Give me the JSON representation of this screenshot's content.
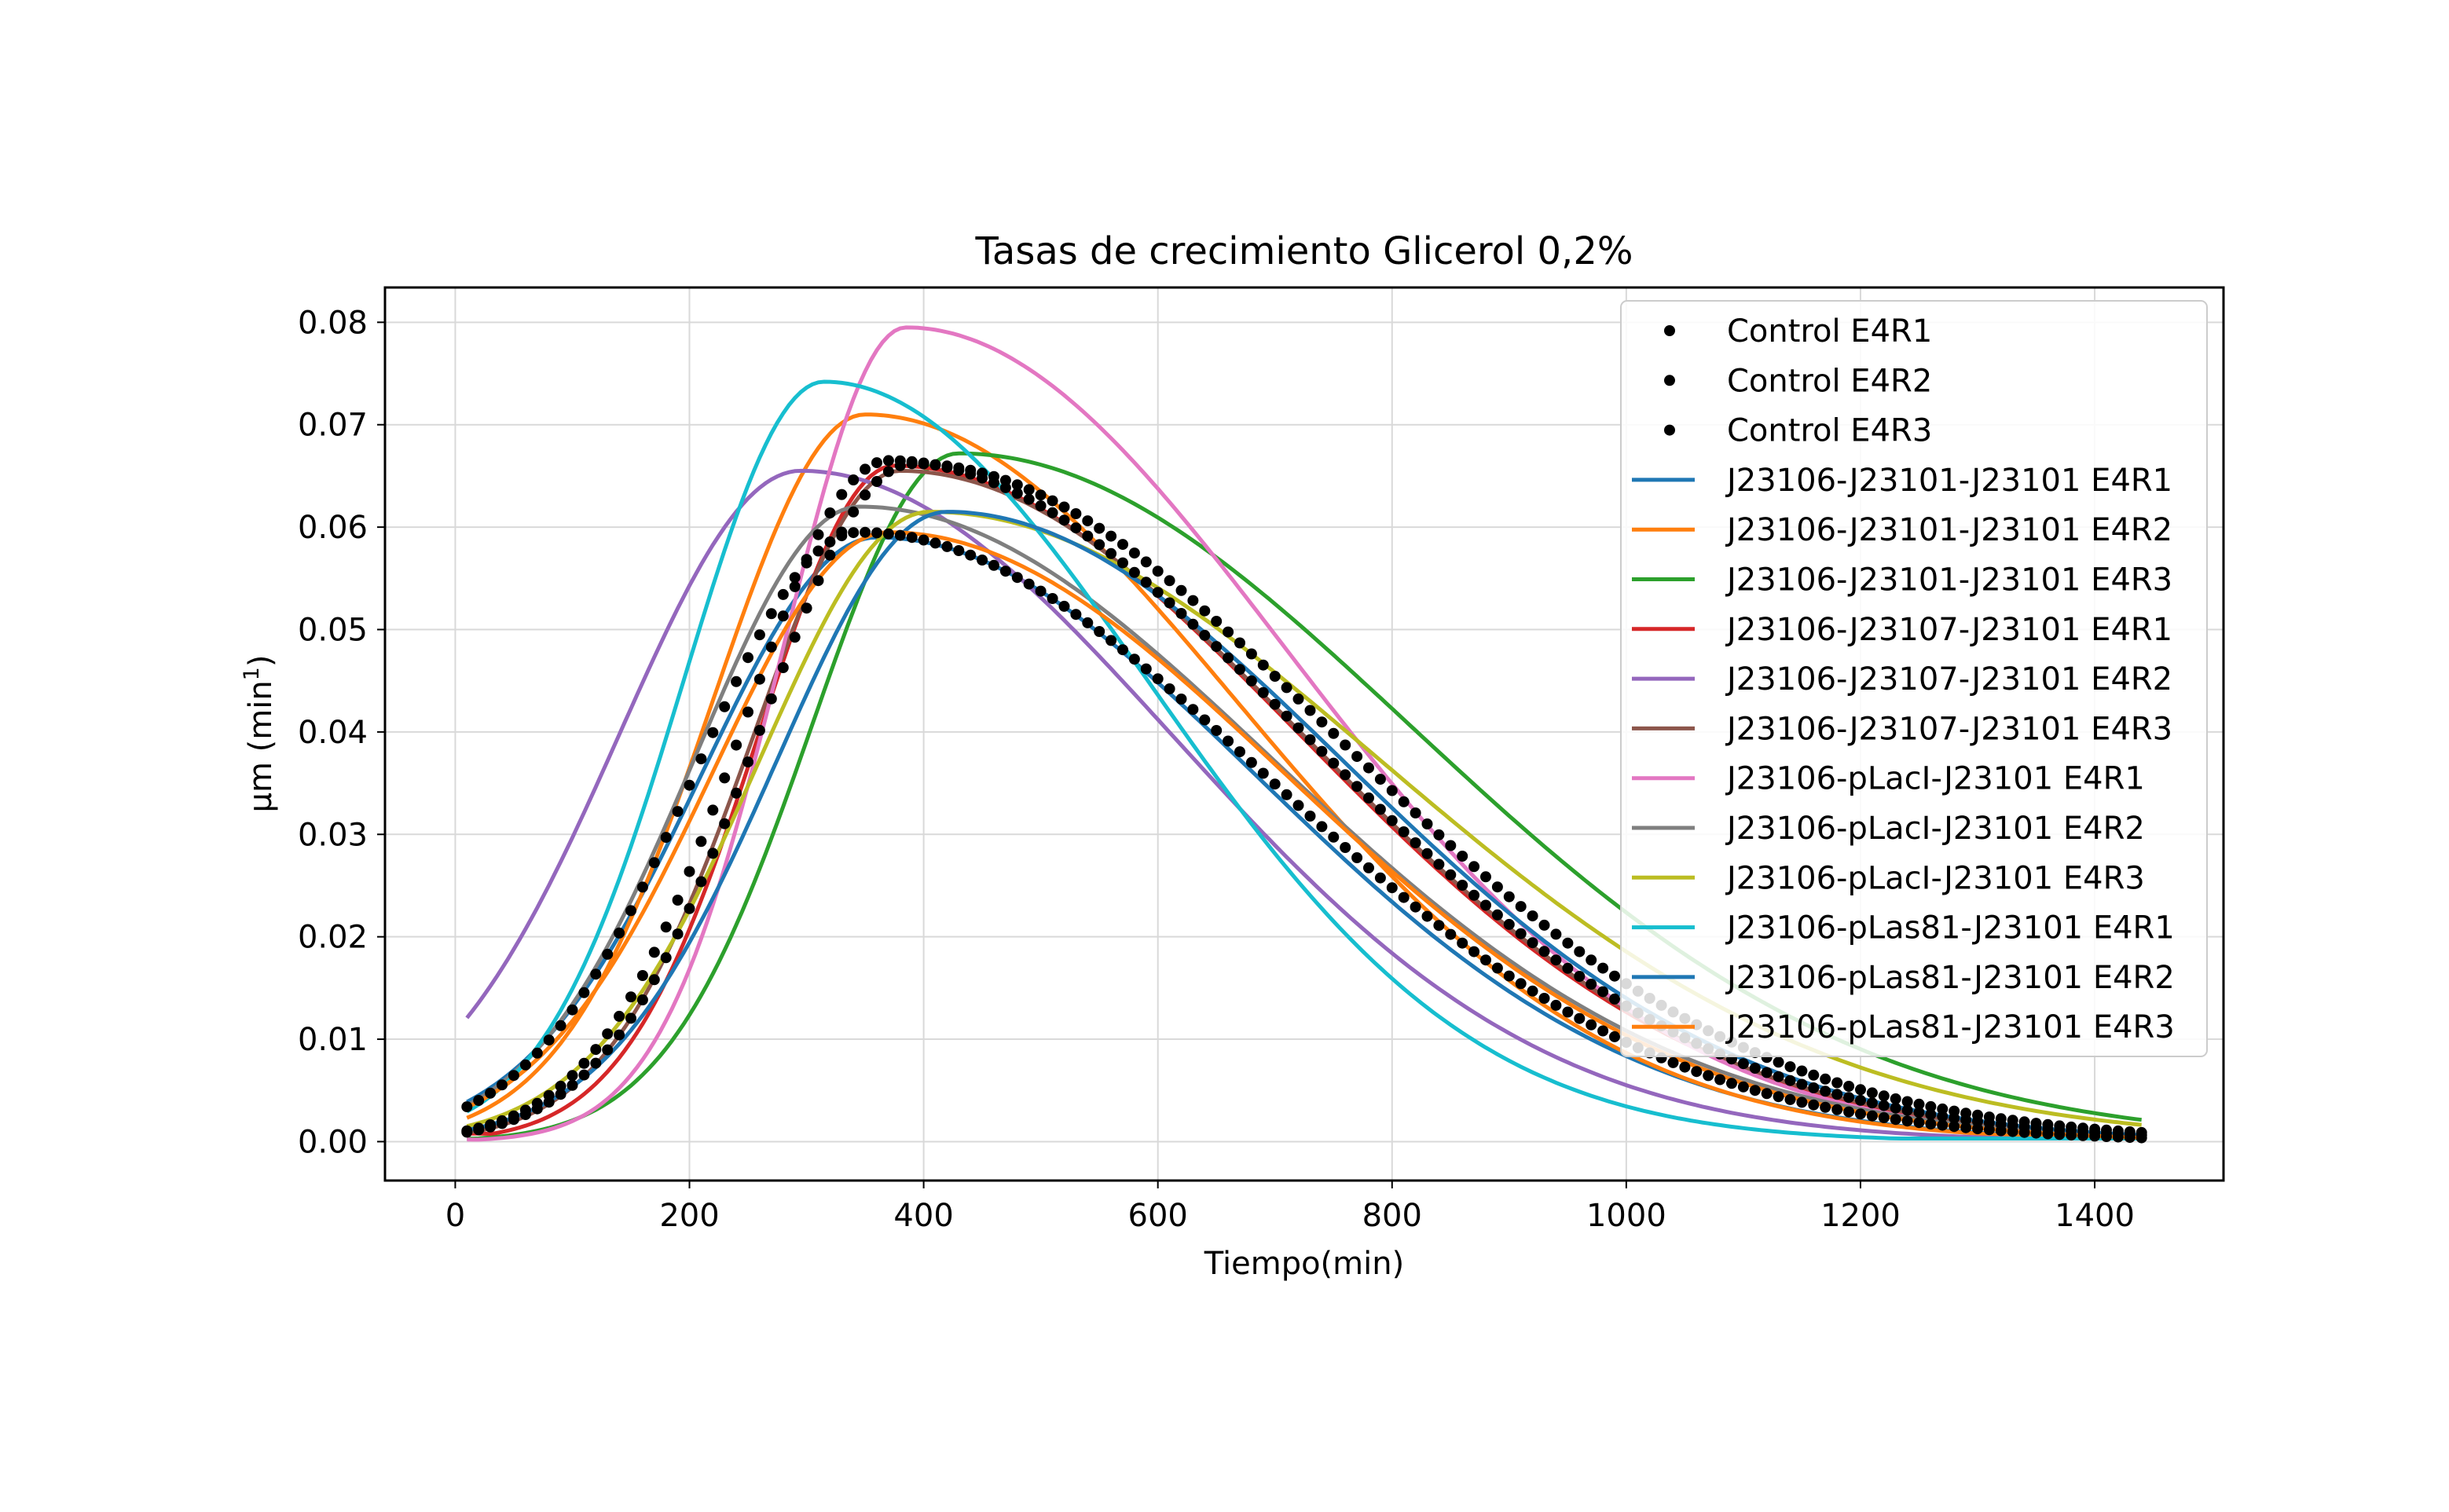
{
  "chart_data": {
    "type": "line",
    "title": "Tasas de crecimiento Glicerol 0,2%",
    "xlabel": "Tiempo(min)",
    "ylabel_main": "μm (min",
    "ylabel_sup": "1",
    "ylabel_close": ")",
    "xlim": [
      -60,
      1510
    ],
    "ylim": [
      -0.0038,
      0.0834
    ],
    "grid": true,
    "legend_position": "upper right",
    "x_ticks": [
      0,
      200,
      400,
      600,
      800,
      1000,
      1200,
      1400
    ],
    "x_tick_labels": [
      "0",
      "200",
      "400",
      "600",
      "800",
      "1000",
      "1200",
      "1400"
    ],
    "y_ticks": [
      0.0,
      0.01,
      0.02,
      0.03,
      0.04,
      0.05,
      0.06,
      0.07,
      0.08
    ],
    "y_tick_labels": [
      "0.00",
      "0.01",
      "0.02",
      "0.03",
      "0.04",
      "0.05",
      "0.06",
      "0.07",
      "0.08"
    ],
    "x_range": [
      10,
      1440
    ],
    "point_step": 10,
    "series": [
      {
        "name": "Control E4R1",
        "style": "dots",
        "color": "#000000",
        "peak_x": 370,
        "peak_y": 0.0665,
        "w_rise": 125,
        "w_fall": 260,
        "start_y": 0.001
      },
      {
        "name": "Control E4R2",
        "style": "dots",
        "color": "#000000",
        "peak_x": 390,
        "peak_y": 0.0662,
        "w_rise": 130,
        "w_fall": 265,
        "start_y": 0.0008
      },
      {
        "name": "Control E4R3",
        "style": "dots",
        "color": "#000000",
        "peak_x": 345,
        "peak_y": 0.0595,
        "w_rise": 140,
        "w_fall": 255,
        "start_y": 0.002
      },
      {
        "name": "J23106-J23101-J23101 E4R1",
        "style": "line",
        "color": "#1f77b4",
        "peak_x": 360,
        "peak_y": 0.059,
        "w_rise": 150,
        "w_fall": 240,
        "start_y": 0.0025
      },
      {
        "name": "J23106-J23101-J23101 E4R2",
        "style": "line",
        "color": "#ff7f0e",
        "peak_x": 350,
        "peak_y": 0.071,
        "w_rise": 130,
        "w_fall": 235,
        "start_y": 0.0015
      },
      {
        "name": "J23106-J23101-J23101 E4R3",
        "style": "line",
        "color": "#2ca02c",
        "peak_x": 430,
        "peak_y": 0.0672,
        "w_rise": 125,
        "w_fall": 285,
        "start_y": 0.0003
      },
      {
        "name": "J23106-J23107-J23101 E4R1",
        "style": "line",
        "color": "#d62728",
        "peak_x": 375,
        "peak_y": 0.066,
        "w_rise": 115,
        "w_fall": 255,
        "start_y": 0.0008
      },
      {
        "name": "J23106-J23107-J23101 E4R2",
        "style": "line",
        "color": "#9467bd",
        "peak_x": 295,
        "peak_y": 0.0655,
        "w_rise": 155,
        "w_fall": 235,
        "start_y": 0.004
      },
      {
        "name": "J23106-J23107-J23101 E4R3",
        "style": "line",
        "color": "#8c564b",
        "peak_x": 380,
        "peak_y": 0.0655,
        "w_rise": 125,
        "w_fall": 255,
        "start_y": 0.001
      },
      {
        "name": "J23106-pLacI-J23101 E4R1",
        "style": "line",
        "color": "#e377c2",
        "peak_x": 385,
        "peak_y": 0.0795,
        "w_rise": 105,
        "w_fall": 240,
        "start_y": 0.0002
      },
      {
        "name": "J23106-pLacI-J23101 E4R2",
        "style": "line",
        "color": "#7f7f7f",
        "peak_x": 345,
        "peak_y": 0.062,
        "w_rise": 140,
        "w_fall": 260,
        "start_y": 0.002
      },
      {
        "name": "J23106-pLacI-J23101 E4R3",
        "style": "line",
        "color": "#bcbd22",
        "peak_x": 405,
        "peak_y": 0.0615,
        "w_rise": 145,
        "w_fall": 285,
        "start_y": 0.0012
      },
      {
        "name": "J23106-pLas81-J23101 E4R1",
        "style": "line",
        "color": "#17becf",
        "peak_x": 315,
        "peak_y": 0.0742,
        "w_rise": 120,
        "w_fall": 205,
        "start_y": 0.001
      },
      {
        "name": "J23106-pLas81-J23101 E4R2",
        "style": "line",
        "color": "#1f77b4",
        "peak_x": 420,
        "peak_y": 0.0615,
        "w_rise": 145,
        "w_fall": 250,
        "start_y": 0.0008
      },
      {
        "name": "J23106-pLas81-J23101 E4R3",
        "style": "line",
        "color": "#ff7f0e",
        "peak_x": 370,
        "peak_y": 0.0595,
        "w_rise": 150,
        "w_fall": 250,
        "start_y": 0.0018
      }
    ]
  }
}
